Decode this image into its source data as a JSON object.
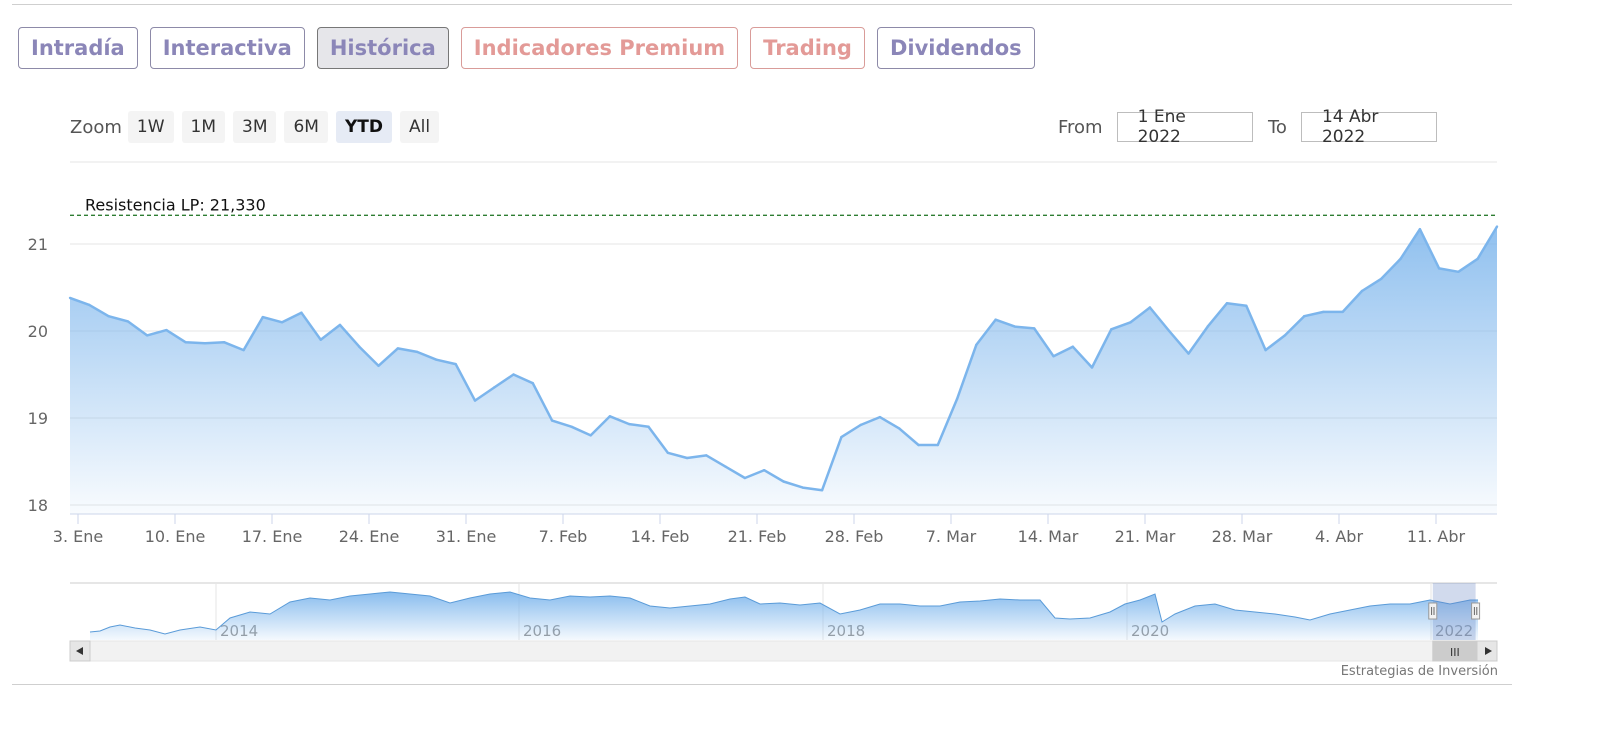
{
  "tabs": [
    {
      "label": "Intradía",
      "kind": "normal"
    },
    {
      "label": "Interactiva",
      "kind": "normal"
    },
    {
      "label": "Histórica",
      "kind": "active"
    },
    {
      "label": "Indicadores Premium",
      "kind": "premium"
    },
    {
      "label": "Trading",
      "kind": "premium"
    },
    {
      "label": "Dividendos",
      "kind": "normal"
    }
  ],
  "zoom": {
    "label": "Zoom",
    "buttons": [
      "1W",
      "1M",
      "3M",
      "6M",
      "YTD",
      "All"
    ],
    "active": "YTD"
  },
  "range": {
    "from_label": "From",
    "from_value": "1 Ene 2022",
    "to_label": "To",
    "to_value": "14 Abr 2022"
  },
  "credit": "Estrategias de Inversión",
  "colors": {
    "series": "#7cb5ec",
    "resistance": "#2e7d32",
    "tab_text": "#8b86b8",
    "premium_text": "#e39a97"
  },
  "chart_data": {
    "type": "area",
    "title": "",
    "xlabel": "",
    "ylabel": "",
    "ylim": [
      18,
      22
    ],
    "yticks": [
      18,
      19,
      20,
      21
    ],
    "x_start": "3. Ene",
    "x_end": "14. Abr",
    "xticks": [
      "3. Ene",
      "10. Ene",
      "17. Ene",
      "24. Ene",
      "31. Ene",
      "7. Feb",
      "14. Feb",
      "21. Feb",
      "28. Feb",
      "7. Mar",
      "14. Mar",
      "21. Mar",
      "28. Mar",
      "4. Abr",
      "11. Abr"
    ],
    "resistance": {
      "label": "Resistencia LP: 21,330",
      "value": 21.33
    },
    "series": [
      {
        "values": [
          20.38,
          20.3,
          20.17,
          20.11,
          19.95,
          20.01,
          19.87,
          19.86,
          19.87,
          19.78,
          20.16,
          20.1,
          20.21,
          19.9,
          20.07,
          19.82,
          19.6,
          19.8,
          19.76,
          19.67,
          19.62,
          19.2,
          19.35,
          19.5,
          19.4,
          18.97,
          18.9,
          18.8,
          19.02,
          18.93,
          18.9,
          18.6,
          18.54,
          18.57,
          18.44,
          18.31,
          18.4,
          18.27,
          18.2,
          18.17,
          18.78,
          18.92,
          19.01,
          18.88,
          18.69,
          18.69,
          19.22,
          19.84,
          20.13,
          20.05,
          20.03,
          19.71,
          19.82,
          19.58,
          20.02,
          20.1,
          20.27,
          20.0,
          19.74,
          20.05,
          20.32,
          20.29,
          19.78,
          19.95,
          20.17,
          20.22,
          20.22,
          20.46,
          20.6,
          20.83,
          21.17,
          20.72,
          20.68,
          20.83,
          21.2
        ]
      }
    ]
  },
  "navigator": {
    "year_labels": [
      "2014",
      "2016",
      "2018",
      "2020",
      "2022"
    ],
    "selection_start": 0.955,
    "selection_end": 0.985,
    "scroll_thumb_label": "III"
  }
}
